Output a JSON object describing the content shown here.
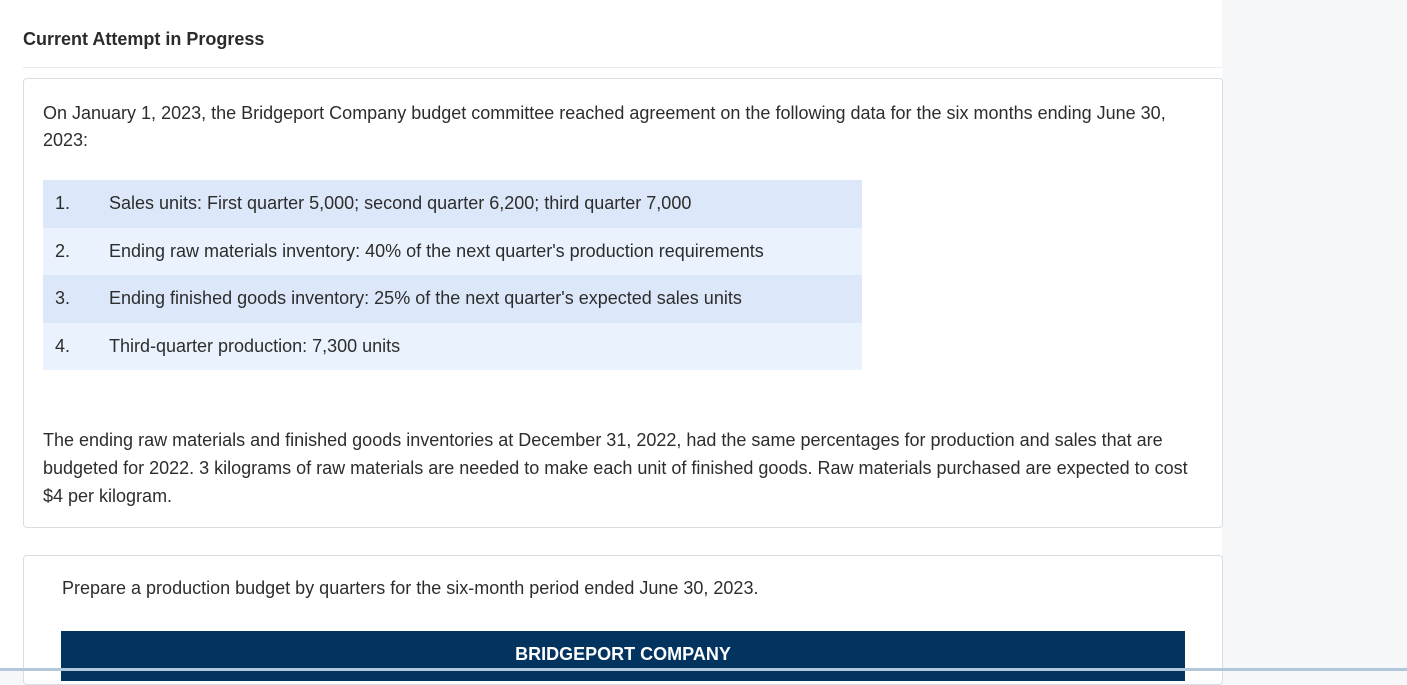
{
  "header": {
    "title": "Current Attempt in Progress"
  },
  "question": {
    "intro": "On January 1, 2023, the Bridgeport Company budget committee reached agreement on the following data for the six months ending June 30, 2023:",
    "items": [
      {
        "num": "1.",
        "text": "Sales units: First quarter 5,000; second quarter 6,200; third quarter 7,000"
      },
      {
        "num": "2.",
        "text": "Ending raw materials inventory: 40% of the next quarter's production requirements"
      },
      {
        "num": "3.",
        "text": "Ending finished goods inventory: 25% of the next quarter's expected sales units"
      },
      {
        "num": "4.",
        "text": "Third-quarter production: 7,300 units"
      }
    ],
    "closing": "The ending raw materials and finished goods inventories at December 31, 2022, had the same percentages for production and sales that are budgeted for 2022. 3 kilograms of raw materials are needed to make each unit of finished goods. Raw materials purchased are expected to cost $4 per kilogram."
  },
  "task": {
    "instruction": "Prepare a production budget by quarters for the six-month period ended June 30, 2023.",
    "company_name": "BRIDGEPORT COMPANY"
  },
  "colors": {
    "banner": "#03335f",
    "row_odd": "#dce8f9",
    "row_even": "#eaf2fd"
  }
}
